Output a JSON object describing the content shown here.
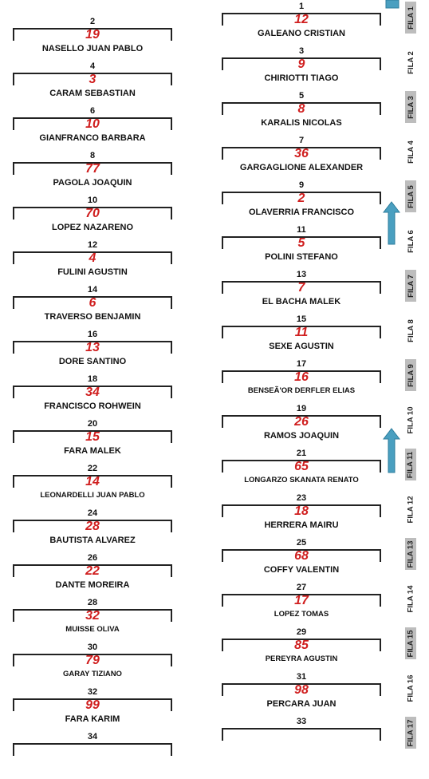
{
  "left_column": [
    {
      "pos": "2",
      "number": "19",
      "name": "NASELLO JUAN PABLO"
    },
    {
      "pos": "4",
      "number": "3",
      "name": "CARAM SEBASTIAN"
    },
    {
      "pos": "6",
      "number": "10",
      "name": "GIANFRANCO  BARBARA"
    },
    {
      "pos": "8",
      "number": "77",
      "name": "PAGOLA JOAQUIN"
    },
    {
      "pos": "10",
      "number": "70",
      "name": "LOPEZ NAZARENO"
    },
    {
      "pos": "12",
      "number": "4",
      "name": "FULINI AGUSTIN"
    },
    {
      "pos": "14",
      "number": "6",
      "name": "TRAVERSO BENJAMIN"
    },
    {
      "pos": "16",
      "number": "13",
      "name": "DORE SANTINO"
    },
    {
      "pos": "18",
      "number": "34",
      "name": "FRANCISCO ROHWEIN"
    },
    {
      "pos": "20",
      "number": "15",
      "name": "FARA MALEK"
    },
    {
      "pos": "22",
      "number": "14",
      "name": "LEONARDELLI JUAN PABLO"
    },
    {
      "pos": "24",
      "number": "28",
      "name": "BAUTISTA  ALVAREZ"
    },
    {
      "pos": "26",
      "number": "22",
      "name": "DANTE  MOREIRA"
    },
    {
      "pos": "28",
      "number": "32",
      "name": "MUISSE OLIVA"
    },
    {
      "pos": "30",
      "number": "79",
      "name": "GARAY TIZIANO"
    },
    {
      "pos": "32",
      "number": "99",
      "name": "FARA  KARIM"
    },
    {
      "pos": "34",
      "number": "",
      "name": ""
    }
  ],
  "right_column": [
    {
      "pos": "1",
      "number": "12",
      "name": "GALEANO CRISTIAN"
    },
    {
      "pos": "3",
      "number": "9",
      "name": "CHIRIOTTI TIAGO"
    },
    {
      "pos": "5",
      "number": "8",
      "name": "KARALIS NICOLAS"
    },
    {
      "pos": "7",
      "number": "36",
      "name": "GARGAGLIONE ALEXANDER"
    },
    {
      "pos": "9",
      "number": "2",
      "name": "OLAVERRIA FRANCISCO"
    },
    {
      "pos": "11",
      "number": "5",
      "name": "POLINI STEFANO"
    },
    {
      "pos": "13",
      "number": "7",
      "name": "EL BACHA MALEK"
    },
    {
      "pos": "15",
      "number": "11",
      "name": "SEXE AGUSTIN"
    },
    {
      "pos": "17",
      "number": "16",
      "name": "BENSEÃ'OR DERFLER ELIAS"
    },
    {
      "pos": "19",
      "number": "26",
      "name": "RAMOS JOAQUIN"
    },
    {
      "pos": "21",
      "number": "65",
      "name": "LONGARZO SKANATA RENATO"
    },
    {
      "pos": "23",
      "number": "18",
      "name": "HERRERA MAIRU"
    },
    {
      "pos": "25",
      "number": "68",
      "name": "COFFY VALENTIN"
    },
    {
      "pos": "27",
      "number": "17",
      "name": "LOPEZ  TOMAS"
    },
    {
      "pos": "29",
      "number": "85",
      "name": "PEREYRA AGUSTIN"
    },
    {
      "pos": "31",
      "number": "98",
      "name": "PERCARA JUAN"
    },
    {
      "pos": "33",
      "number": "",
      "name": ""
    }
  ],
  "filas": [
    "FILA 1",
    "FILA 2",
    "FILA 3",
    "FILA 4",
    "FILA 5",
    "FILA 6",
    "FILA 7",
    "FILA 8",
    "FILA 9",
    "FILA 10",
    "FILA 11",
    "FILA 12",
    "FILA 13",
    "FILA 14",
    "FILA 15",
    "FILA 16",
    "FILA 17"
  ],
  "colors": {
    "number": "#d01f1f",
    "arrow": "#4a9fc0",
    "fila_shade": "#bdbdbd"
  }
}
